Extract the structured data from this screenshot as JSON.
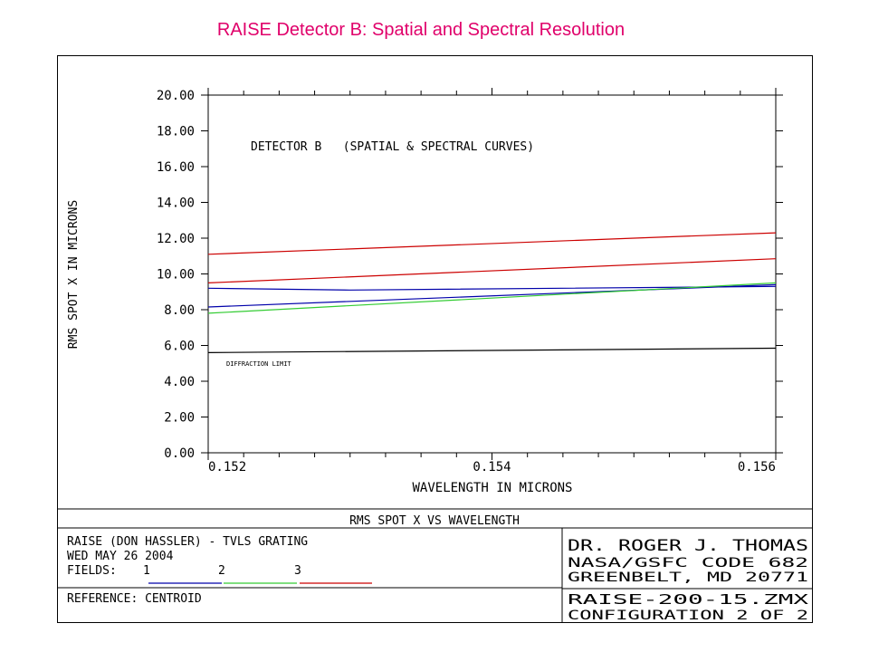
{
  "title": "RAISE Detector B: Spatial and Spectral Resolution",
  "chart_data": {
    "type": "line",
    "annotation": "DETECTOR B   (SPATIAL & SPECTRAL CURVES)",
    "xlabel": "WAVELENGTH IN MICRONS",
    "ylabel": "RMS SPOT X IN MICRONS",
    "xlim": [
      0.152,
      0.156
    ],
    "ylim": [
      0,
      20
    ],
    "x_ticks": [
      "0.152",
      "0.154",
      "0.156"
    ],
    "y_ticks": [
      "0.00",
      "2.00",
      "4.00",
      "6.00",
      "8.00",
      "10.00",
      "12.00",
      "14.00",
      "16.00",
      "18.00",
      "20.00"
    ],
    "colors": {
      "field1": "#0000aa",
      "field2": "#33cc33",
      "field3": "#cc0000",
      "limit": "#000000"
    },
    "series": [
      {
        "color": "#cc0000",
        "x": [
          0.152,
          0.156
        ],
        "y": [
          11.1,
          12.3
        ]
      },
      {
        "color": "#cc0000",
        "x": [
          0.152,
          0.156
        ],
        "y": [
          9.5,
          10.85
        ]
      },
      {
        "color": "#0000aa",
        "x": [
          0.152,
          0.153,
          0.156
        ],
        "y": [
          9.2,
          9.1,
          9.3
        ]
      },
      {
        "color": "#0000aa",
        "x": [
          0.152,
          0.156
        ],
        "y": [
          8.15,
          9.4
        ]
      },
      {
        "color": "#33cc33",
        "x": [
          0.152,
          0.156
        ],
        "y": [
          7.8,
          9.5
        ]
      },
      {
        "color": "#000000",
        "name": "DIFFRACTION LIMIT",
        "x": [
          0.152,
          0.156
        ],
        "y": [
          5.6,
          5.85
        ]
      }
    ],
    "limit_label": "DIFFRACTION LIMIT"
  },
  "footer": {
    "plot_caption": "RMS SPOT X VS WAVELENGTH",
    "line1": "RAISE (DON HASSLER) - TVLS GRATING",
    "line2": "WED MAY 26 2004",
    "fields_label": "FIELDS:",
    "fields": [
      "1",
      "2",
      "3"
    ],
    "reference": "REFERENCE: CENTROID",
    "author": "DR. ROGER J. THOMAS",
    "org": "NASA/GSFC CODE 682",
    "address": "GREENBELT, MD 20771",
    "file": "RAISE-200-15.ZMX",
    "config": "CONFIGURATION 2 OF 2"
  }
}
